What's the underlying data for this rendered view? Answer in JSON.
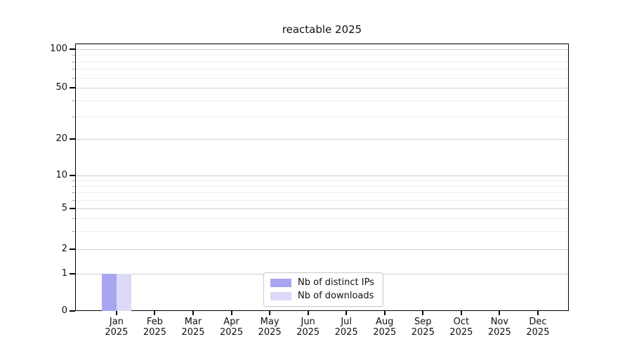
{
  "title": "reactable 2025",
  "chart_data": {
    "type": "bar",
    "title": "reactable 2025",
    "x_months": [
      "Jan",
      "Feb",
      "Mar",
      "Apr",
      "May",
      "Jun",
      "Jul",
      "Aug",
      "Sep",
      "Oct",
      "Nov",
      "Dec"
    ],
    "x_year": "2025",
    "y_scale": "log-like",
    "y_ticks": [
      0,
      1,
      2,
      5,
      10,
      20,
      50,
      100
    ],
    "y_minor_values": [
      3,
      4,
      6,
      7,
      8,
      9,
      30,
      40,
      60,
      70,
      80,
      90
    ],
    "ylim": [
      0,
      110
    ],
    "grid": true,
    "series": [
      {
        "name": "Nb of distinct IPs",
        "color": "#a8a6f0",
        "values": [
          1,
          0,
          0,
          0,
          0,
          0,
          0,
          0,
          0,
          0,
          0,
          0
        ]
      },
      {
        "name": "Nb of downloads",
        "color": "#dcdaf8",
        "values": [
          1,
          0,
          0,
          0,
          0,
          0,
          0,
          0,
          0,
          0,
          0,
          0
        ]
      }
    ],
    "legend": {
      "position": "inside-bottom-center",
      "labels": [
        "Nb of distinct IPs",
        "Nb of downloads"
      ]
    }
  },
  "colors": {
    "background": "#ffffff",
    "axis": "#000000",
    "text": "#111111",
    "grid_major": "#d0d0d0",
    "grid_minor": "#ededed",
    "legend_border": "#c8c8c8",
    "bar_distinct_ips": "#a8a6f0",
    "bar_downloads": "#dcdaf8"
  }
}
